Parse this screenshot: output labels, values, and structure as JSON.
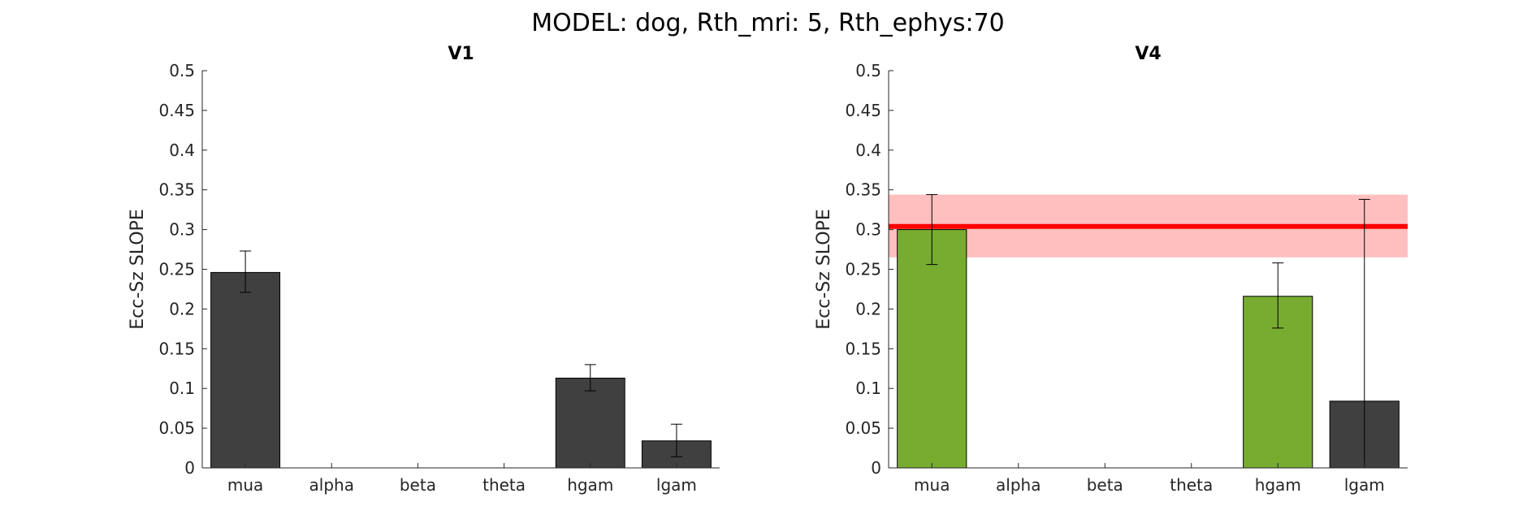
{
  "figure": {
    "title": "MODEL: dog, Rth_mri: 5, Rth_ephys:70"
  },
  "colors": {
    "bar_default": "#404040",
    "bar_highlight": "#77ac30",
    "reference_line": "#ff0000",
    "reference_band": "#ffbfbf",
    "axis": "#262626"
  },
  "chart_data": [
    {
      "type": "bar",
      "title": "V1",
      "ylabel": "Ecc-Sz SLOPE",
      "xlabel": "",
      "ylim": [
        0,
        0.5
      ],
      "yticks": [
        "0",
        "0.05",
        "0.1",
        "0.15",
        "0.2",
        "0.25",
        "0.3",
        "0.35",
        "0.4",
        "0.45",
        "0.5"
      ],
      "categories": [
        "mua",
        "alpha",
        "beta",
        "theta",
        "hgam",
        "lgam"
      ],
      "values": [
        0.246,
        0,
        0,
        0,
        0.113,
        0.034
      ],
      "error_low": [
        0.221,
        null,
        null,
        null,
        0.097,
        0.014
      ],
      "error_high": [
        0.273,
        null,
        null,
        null,
        0.13,
        0.055
      ],
      "highlighted": [
        false,
        false,
        false,
        false,
        false,
        false
      ],
      "grid": false
    },
    {
      "type": "bar",
      "title": "V4",
      "ylabel": "Ecc-Sz SLOPE",
      "xlabel": "",
      "ylim": [
        0,
        0.5
      ],
      "yticks": [
        "0",
        "0.05",
        "0.1",
        "0.15",
        "0.2",
        "0.25",
        "0.3",
        "0.35",
        "0.4",
        "0.45",
        "0.5"
      ],
      "categories": [
        "mua",
        "alpha",
        "beta",
        "theta",
        "hgam",
        "lgam"
      ],
      "values": [
        0.3,
        0,
        0,
        0,
        0.216,
        0.084
      ],
      "error_low": [
        0.256,
        null,
        null,
        null,
        0.176,
        0.0
      ],
      "error_high": [
        0.344,
        null,
        null,
        null,
        0.258,
        0.338
      ],
      "highlighted": [
        true,
        false,
        false,
        false,
        true,
        false
      ],
      "reference": {
        "value": 0.304,
        "band": [
          0.265,
          0.344
        ]
      },
      "grid": false
    }
  ]
}
